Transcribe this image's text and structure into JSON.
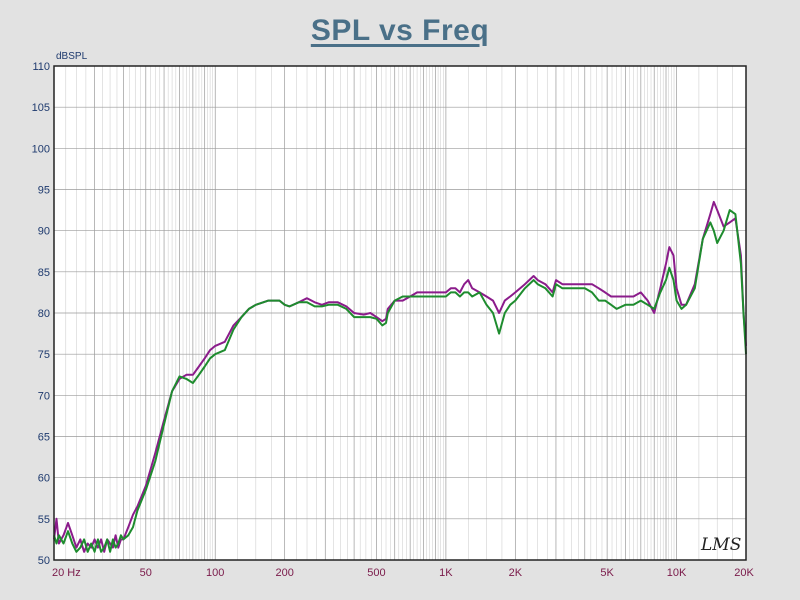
{
  "title": "SPL vs Freq",
  "watermark": "LMS",
  "colors": {
    "background": "#e2e2e2",
    "plot_bg": "#ffffff",
    "grid": "#9a9a9a",
    "title": "#4a7088",
    "ytick": "#1e3a6e",
    "xtick": "#7a1a4a"
  },
  "chart_data": {
    "type": "line",
    "title": "SPL vs Freq",
    "xlabel": "",
    "ylabel": "dBSPL",
    "xscale": "log",
    "xlim": [
      20,
      20000
    ],
    "ylim": [
      50,
      110
    ],
    "grid": true,
    "legend": "none",
    "y_ticks": [
      50,
      55,
      60,
      65,
      70,
      75,
      80,
      85,
      90,
      95,
      100,
      105,
      110
    ],
    "x_ticks": [
      {
        "value": 20,
        "label": "20  Hz"
      },
      {
        "value": 50,
        "label": "50"
      },
      {
        "value": 100,
        "label": "100"
      },
      {
        "value": 200,
        "label": "200"
      },
      {
        "value": 500,
        "label": "500"
      },
      {
        "value": 1000,
        "label": "1K"
      },
      {
        "value": 2000,
        "label": "2K"
      },
      {
        "value": 5000,
        "label": "5K"
      },
      {
        "value": 10000,
        "label": "10K"
      },
      {
        "value": 20000,
        "label": "20K"
      }
    ],
    "series": [
      {
        "color": "#8b1c8b",
        "points": [
          [
            20,
            52.5
          ],
          [
            20.5,
            55
          ],
          [
            21,
            52
          ],
          [
            22,
            53
          ],
          [
            23,
            54.5
          ],
          [
            24,
            53
          ],
          [
            25,
            51.5
          ],
          [
            26,
            52.5
          ],
          [
            27,
            51
          ],
          [
            28,
            52
          ],
          [
            29,
            51.5
          ],
          [
            30,
            52.5
          ],
          [
            31,
            51.5
          ],
          [
            32,
            52.5
          ],
          [
            33,
            51
          ],
          [
            34,
            52.5
          ],
          [
            35,
            52
          ],
          [
            36,
            51.5
          ],
          [
            37,
            53
          ],
          [
            38,
            51.5
          ],
          [
            39,
            52.5
          ],
          [
            40,
            52.5
          ],
          [
            42,
            54
          ],
          [
            44,
            55.5
          ],
          [
            46,
            56.5
          ],
          [
            50,
            59
          ],
          [
            55,
            63
          ],
          [
            60,
            67
          ],
          [
            65,
            70.5
          ],
          [
            70,
            72
          ],
          [
            75,
            72.5
          ],
          [
            80,
            72.5
          ],
          [
            85,
            73.5
          ],
          [
            90,
            74.5
          ],
          [
            95,
            75.5
          ],
          [
            100,
            76
          ],
          [
            110,
            76.5
          ],
          [
            120,
            78.5
          ],
          [
            130,
            79.5
          ],
          [
            140,
            80.5
          ],
          [
            150,
            81
          ],
          [
            170,
            81.5
          ],
          [
            190,
            81.5
          ],
          [
            200,
            81
          ],
          [
            210,
            80.8
          ],
          [
            230,
            81.3
          ],
          [
            250,
            81.8
          ],
          [
            270,
            81.3
          ],
          [
            290,
            81
          ],
          [
            310,
            81.3
          ],
          [
            340,
            81.3
          ],
          [
            370,
            80.8
          ],
          [
            400,
            80
          ],
          [
            440,
            79.8
          ],
          [
            470,
            80
          ],
          [
            500,
            79.5
          ],
          [
            530,
            79
          ],
          [
            550,
            79.3
          ],
          [
            560,
            80.5
          ],
          [
            600,
            81.5
          ],
          [
            650,
            81.5
          ],
          [
            700,
            82
          ],
          [
            750,
            82.5
          ],
          [
            800,
            82.5
          ],
          [
            900,
            82.5
          ],
          [
            1000,
            82.5
          ],
          [
            1050,
            83
          ],
          [
            1100,
            83
          ],
          [
            1150,
            82.5
          ],
          [
            1200,
            83.5
          ],
          [
            1250,
            84
          ],
          [
            1300,
            83
          ],
          [
            1400,
            82.5
          ],
          [
            1500,
            82
          ],
          [
            1600,
            81.5
          ],
          [
            1700,
            80
          ],
          [
            1800,
            81.5
          ],
          [
            1900,
            82
          ],
          [
            2000,
            82.5
          ],
          [
            2200,
            83.5
          ],
          [
            2400,
            84.5
          ],
          [
            2500,
            84
          ],
          [
            2700,
            83.5
          ],
          [
            2900,
            82.5
          ],
          [
            3000,
            84
          ],
          [
            3200,
            83.5
          ],
          [
            3500,
            83.5
          ],
          [
            3800,
            83.5
          ],
          [
            4000,
            83.5
          ],
          [
            4300,
            83.5
          ],
          [
            4600,
            83
          ],
          [
            4900,
            82.5
          ],
          [
            5200,
            82
          ],
          [
            5500,
            82
          ],
          [
            6000,
            82
          ],
          [
            6500,
            82
          ],
          [
            7000,
            82.5
          ],
          [
            7500,
            81.5
          ],
          [
            8000,
            80
          ],
          [
            8500,
            83
          ],
          [
            9000,
            86
          ],
          [
            9300,
            88
          ],
          [
            9700,
            87
          ],
          [
            10000,
            83
          ],
          [
            10500,
            81
          ],
          [
            11000,
            81
          ],
          [
            12000,
            83.5
          ],
          [
            13000,
            89
          ],
          [
            14000,
            92
          ],
          [
            14500,
            93.5
          ],
          [
            15000,
            92.5
          ],
          [
            16000,
            90.5
          ],
          [
            17000,
            91
          ],
          [
            18000,
            91.5
          ],
          [
            19000,
            87
          ],
          [
            19500,
            80
          ],
          [
            20000,
            76
          ]
        ]
      },
      {
        "color": "#1e8c2e",
        "points": [
          [
            20,
            53
          ],
          [
            20.5,
            52
          ],
          [
            21,
            53
          ],
          [
            22,
            52
          ],
          [
            23,
            53.5
          ],
          [
            24,
            52
          ],
          [
            25,
            51
          ],
          [
            26,
            51.5
          ],
          [
            27,
            52.5
          ],
          [
            28,
            51
          ],
          [
            29,
            52
          ],
          [
            30,
            51
          ],
          [
            31,
            52.5
          ],
          [
            32,
            51
          ],
          [
            33,
            51.5
          ],
          [
            34,
            52.5
          ],
          [
            35,
            51
          ],
          [
            36,
            52.5
          ],
          [
            37,
            51.5
          ],
          [
            38,
            52
          ],
          [
            39,
            53
          ],
          [
            40,
            52.5
          ],
          [
            42,
            53
          ],
          [
            44,
            54
          ],
          [
            46,
            56
          ],
          [
            50,
            58.5
          ],
          [
            55,
            62
          ],
          [
            60,
            66.5
          ],
          [
            65,
            70.5
          ],
          [
            70,
            72.3
          ],
          [
            75,
            72
          ],
          [
            80,
            71.5
          ],
          [
            85,
            72.5
          ],
          [
            90,
            73.5
          ],
          [
            95,
            74.5
          ],
          [
            100,
            75
          ],
          [
            110,
            75.5
          ],
          [
            120,
            78
          ],
          [
            130,
            79.5
          ],
          [
            140,
            80.5
          ],
          [
            150,
            81
          ],
          [
            170,
            81.5
          ],
          [
            190,
            81.5
          ],
          [
            200,
            81
          ],
          [
            210,
            80.8
          ],
          [
            230,
            81.3
          ],
          [
            250,
            81.3
          ],
          [
            270,
            80.8
          ],
          [
            290,
            80.8
          ],
          [
            310,
            81
          ],
          [
            340,
            81
          ],
          [
            370,
            80.5
          ],
          [
            400,
            79.5
          ],
          [
            440,
            79.5
          ],
          [
            470,
            79.5
          ],
          [
            500,
            79.3
          ],
          [
            530,
            78.5
          ],
          [
            550,
            78.8
          ],
          [
            560,
            80
          ],
          [
            600,
            81.5
          ],
          [
            650,
            82
          ],
          [
            700,
            82
          ],
          [
            750,
            82
          ],
          [
            800,
            82
          ],
          [
            900,
            82
          ],
          [
            1000,
            82
          ],
          [
            1050,
            82.5
          ],
          [
            1100,
            82.5
          ],
          [
            1150,
            82
          ],
          [
            1200,
            82.5
          ],
          [
            1250,
            82.5
          ],
          [
            1300,
            82
          ],
          [
            1400,
            82.5
          ],
          [
            1500,
            81
          ],
          [
            1600,
            80
          ],
          [
            1700,
            77.5
          ],
          [
            1800,
            80
          ],
          [
            1900,
            81
          ],
          [
            2000,
            81.5
          ],
          [
            2200,
            83
          ],
          [
            2400,
            84
          ],
          [
            2500,
            83.5
          ],
          [
            2700,
            83
          ],
          [
            2900,
            82
          ],
          [
            3000,
            83.5
          ],
          [
            3200,
            83
          ],
          [
            3500,
            83
          ],
          [
            3800,
            83
          ],
          [
            4000,
            83
          ],
          [
            4300,
            82.5
          ],
          [
            4600,
            81.5
          ],
          [
            4900,
            81.5
          ],
          [
            5200,
            81
          ],
          [
            5500,
            80.5
          ],
          [
            6000,
            81
          ],
          [
            6500,
            81
          ],
          [
            7000,
            81.5
          ],
          [
            7500,
            81
          ],
          [
            8000,
            80.5
          ],
          [
            8500,
            82.5
          ],
          [
            9000,
            84
          ],
          [
            9300,
            85.5
          ],
          [
            9700,
            84
          ],
          [
            10000,
            81.5
          ],
          [
            10500,
            80.5
          ],
          [
            11000,
            81
          ],
          [
            12000,
            83
          ],
          [
            13000,
            89
          ],
          [
            14000,
            91
          ],
          [
            14500,
            90
          ],
          [
            15000,
            88.5
          ],
          [
            16000,
            90
          ],
          [
            17000,
            92.5
          ],
          [
            18000,
            92
          ],
          [
            19000,
            86
          ],
          [
            19500,
            80
          ],
          [
            20000,
            75
          ]
        ]
      }
    ]
  }
}
